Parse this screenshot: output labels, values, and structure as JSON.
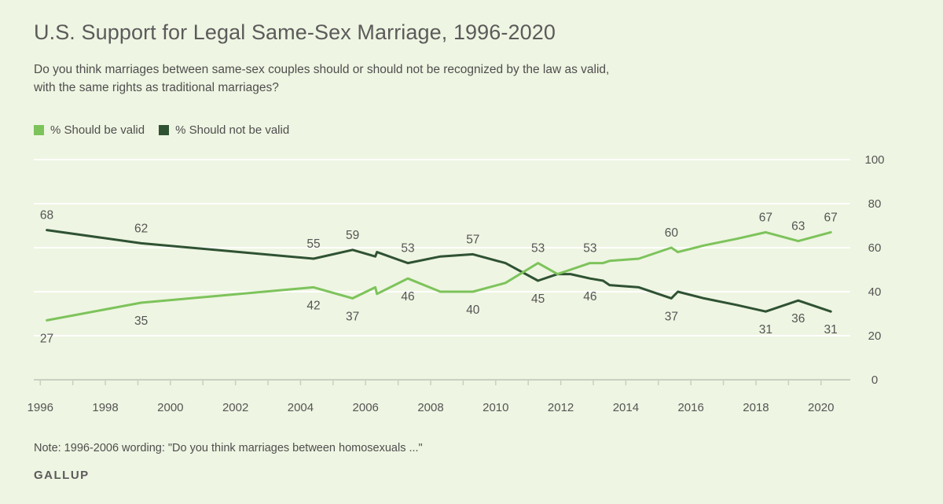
{
  "title": "U.S. Support for Legal Same-Sex Marriage, 1996-2020",
  "subtitle_line1": "Do you think marriages between same-sex couples should or should not be recognized by the law as valid,",
  "subtitle_line2": "with the same rights as traditional marriages?",
  "legend": [
    {
      "label": "% Should be valid",
      "color": "#7dc35b"
    },
    {
      "label": "% Should not be valid",
      "color": "#2f5233"
    }
  ],
  "note": "Note: 1996-2006 wording: \"Do you think marriages between homosexuals ...\"",
  "source": "GALLUP",
  "colors": {
    "background": "#eef5e2",
    "valid": "#7dc35b",
    "not_valid": "#2f5233",
    "grid": "#ffffff",
    "axis": "#c9d0c0"
  },
  "chart_data": {
    "type": "line",
    "title": "U.S. Support for Legal Same-Sex Marriage, 1996-2020",
    "xlabel": "",
    "ylabel": "",
    "x_ticks": [
      "1996",
      "1998",
      "2000",
      "2002",
      "2004",
      "2006",
      "2008",
      "2010",
      "2012",
      "2014",
      "2016",
      "2018",
      "2020"
    ],
    "y_ticks": [
      "0",
      "20",
      "40",
      "60",
      "80",
      "100"
    ],
    "xlim": [
      1995.8,
      2020.9
    ],
    "ylim": [
      0,
      100
    ],
    "y_axis_side": "right",
    "grid": true,
    "legend_position": "top-left",
    "series": [
      {
        "name": "% Should be valid",
        "color": "#7dc35b",
        "points": [
          [
            1996.2,
            27
          ],
          [
            1999.1,
            35
          ],
          [
            2004.4,
            42
          ],
          [
            2005.6,
            37
          ],
          [
            2006.3,
            42
          ],
          [
            2006.35,
            39
          ],
          [
            2007.3,
            46
          ],
          [
            2008.3,
            40
          ],
          [
            2009.3,
            40
          ],
          [
            2010.3,
            44
          ],
          [
            2011.3,
            53
          ],
          [
            2011.9,
            48
          ],
          [
            2012.3,
            50
          ],
          [
            2012.9,
            53
          ],
          [
            2013.3,
            53
          ],
          [
            2013.5,
            54
          ],
          [
            2014.4,
            55
          ],
          [
            2015.4,
            60
          ],
          [
            2015.6,
            58
          ],
          [
            2016.4,
            61
          ],
          [
            2017.4,
            64
          ],
          [
            2018.3,
            67
          ],
          [
            2019.3,
            63
          ],
          [
            2020.3,
            67
          ]
        ]
      },
      {
        "name": "% Should not be valid",
        "color": "#2f5233",
        "points": [
          [
            1996.2,
            68
          ],
          [
            1999.1,
            62
          ],
          [
            2004.4,
            55
          ],
          [
            2005.6,
            59
          ],
          [
            2006.3,
            56
          ],
          [
            2006.35,
            58
          ],
          [
            2007.3,
            53
          ],
          [
            2008.3,
            56
          ],
          [
            2009.3,
            57
          ],
          [
            2010.3,
            53
          ],
          [
            2011.3,
            45
          ],
          [
            2011.9,
            48
          ],
          [
            2012.3,
            48
          ],
          [
            2012.9,
            46
          ],
          [
            2013.3,
            45
          ],
          [
            2013.5,
            43
          ],
          [
            2014.4,
            42
          ],
          [
            2015.4,
            37
          ],
          [
            2015.6,
            40
          ],
          [
            2016.4,
            37
          ],
          [
            2017.4,
            34
          ],
          [
            2018.3,
            31
          ],
          [
            2019.3,
            36
          ],
          [
            2020.3,
            31
          ]
        ]
      }
    ],
    "annotations": [
      {
        "series": 0,
        "x": 1996.2,
        "label": "27",
        "pos": "below"
      },
      {
        "series": 0,
        "x": 1999.1,
        "label": "35",
        "pos": "below"
      },
      {
        "series": 0,
        "x": 2004.4,
        "label": "42",
        "pos": "below"
      },
      {
        "series": 0,
        "x": 2005.6,
        "label": "37",
        "pos": "below"
      },
      {
        "series": 0,
        "x": 2007.3,
        "label": "46",
        "pos": "below"
      },
      {
        "series": 0,
        "x": 2009.3,
        "label": "40",
        "pos": "below"
      },
      {
        "series": 0,
        "x": 2011.3,
        "label": "53",
        "pos": "above"
      },
      {
        "series": 0,
        "x": 2012.9,
        "label": "53",
        "pos": "above"
      },
      {
        "series": 0,
        "x": 2015.4,
        "label": "60",
        "pos": "above"
      },
      {
        "series": 0,
        "x": 2018.3,
        "label": "67",
        "pos": "above"
      },
      {
        "series": 0,
        "x": 2019.3,
        "label": "63",
        "pos": "above"
      },
      {
        "series": 0,
        "x": 2020.3,
        "label": "67",
        "pos": "above"
      },
      {
        "series": 1,
        "x": 1996.2,
        "label": "68",
        "pos": "above"
      },
      {
        "series": 1,
        "x": 1999.1,
        "label": "62",
        "pos": "above"
      },
      {
        "series": 1,
        "x": 2004.4,
        "label": "55",
        "pos": "above"
      },
      {
        "series": 1,
        "x": 2005.6,
        "label": "59",
        "pos": "above"
      },
      {
        "series": 1,
        "x": 2007.3,
        "label": "53",
        "pos": "above"
      },
      {
        "series": 1,
        "x": 2009.3,
        "label": "57",
        "pos": "above"
      },
      {
        "series": 1,
        "x": 2011.3,
        "label": "45",
        "pos": "below"
      },
      {
        "series": 1,
        "x": 2012.9,
        "label": "46",
        "pos": "below"
      },
      {
        "series": 1,
        "x": 2015.4,
        "label": "37",
        "pos": "below"
      },
      {
        "series": 1,
        "x": 2018.3,
        "label": "31",
        "pos": "below"
      },
      {
        "series": 1,
        "x": 2019.3,
        "label": "36",
        "pos": "below"
      },
      {
        "series": 1,
        "x": 2020.3,
        "label": "31",
        "pos": "below"
      }
    ]
  }
}
